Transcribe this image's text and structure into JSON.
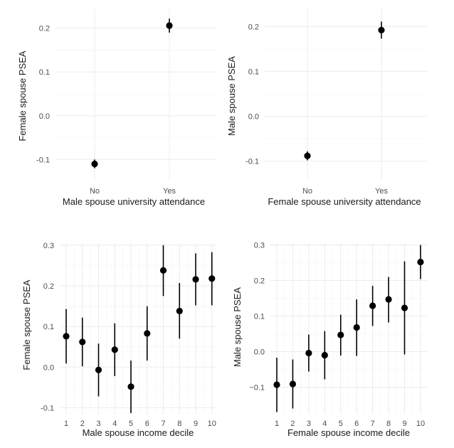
{
  "chart_data": [
    {
      "type": "scatter",
      "error_bars": true,
      "xlabel": "Male spouse university attendance",
      "ylabel": "Female spouse PSEA",
      "categories": [
        "No",
        "Yes"
      ],
      "ylim": [
        -0.145,
        0.245
      ],
      "yticks": [
        -0.1,
        0.0,
        0.1,
        0.2
      ],
      "yticklabels": [
        "-0.1",
        "0.0",
        "0.1",
        "0.2"
      ],
      "grid": true,
      "points": [
        {
          "x": "No",
          "y": -0.11,
          "lo": -0.12,
          "hi": -0.1
        },
        {
          "x": "Yes",
          "y": 0.206,
          "lo": 0.19,
          "hi": 0.222
        }
      ]
    },
    {
      "type": "scatter",
      "error_bars": true,
      "xlabel": "Female spouse university attendance",
      "ylabel": "Male spouse PSEA",
      "categories": [
        "No",
        "Yes"
      ],
      "ylim": [
        -0.14,
        0.24
      ],
      "yticks": [
        -0.1,
        0.0,
        0.1,
        0.2
      ],
      "yticklabels": [
        "-0.1",
        "0.0",
        "0.1",
        "0.2"
      ],
      "grid": true,
      "points": [
        {
          "x": "No",
          "y": -0.088,
          "lo": -0.098,
          "hi": -0.078
        },
        {
          "x": "Yes",
          "y": 0.192,
          "lo": 0.173,
          "hi": 0.211
        }
      ]
    },
    {
      "type": "scatter",
      "error_bars": true,
      "xlabel": "Male spouse income decile",
      "ylabel": "Female spouse PSEA",
      "categories": [
        "1",
        "2",
        "3",
        "4",
        "5",
        "6",
        "7",
        "8",
        "9",
        "10"
      ],
      "ylim": [
        -0.115,
        0.305
      ],
      "yticks": [
        -0.1,
        0.0,
        0.1,
        0.2,
        0.3
      ],
      "yticklabels": [
        "-0.1",
        "0.0",
        "0.1",
        "0.2",
        "0.3"
      ],
      "grid": true,
      "points": [
        {
          "x": "1",
          "y": 0.076,
          "lo": 0.009,
          "hi": 0.143
        },
        {
          "x": "2",
          "y": 0.062,
          "lo": 0.002,
          "hi": 0.122
        },
        {
          "x": "3",
          "y": -0.007,
          "lo": -0.072,
          "hi": 0.058
        },
        {
          "x": "4",
          "y": 0.043,
          "lo": -0.022,
          "hi": 0.108
        },
        {
          "x": "5",
          "y": -0.048,
          "lo": -0.113,
          "hi": 0.016
        },
        {
          "x": "6",
          "y": 0.083,
          "lo": 0.016,
          "hi": 0.15
        },
        {
          "x": "7",
          "y": 0.238,
          "lo": 0.175,
          "hi": 0.3
        },
        {
          "x": "8",
          "y": 0.138,
          "lo": 0.07,
          "hi": 0.207
        },
        {
          "x": "9",
          "y": 0.216,
          "lo": 0.152,
          "hi": 0.28
        },
        {
          "x": "10",
          "y": 0.218,
          "lo": 0.152,
          "hi": 0.283
        }
      ]
    },
    {
      "type": "scatter",
      "error_bars": true,
      "xlabel": "Female spouse income decile",
      "ylabel": "Male spouse PSEA",
      "categories": [
        "1",
        "2",
        "3",
        "4",
        "5",
        "6",
        "7",
        "8",
        "9",
        "10"
      ],
      "ylim": [
        -0.175,
        0.305
      ],
      "yticks": [
        -0.1,
        0.0,
        0.1,
        0.2,
        0.3
      ],
      "yticklabels": [
        "−0.1",
        "0.0",
        "0.1",
        "0.2",
        "0.3"
      ],
      "grid": true,
      "points": [
        {
          "x": "1",
          "y": -0.093,
          "lo": -0.17,
          "hi": -0.017
        },
        {
          "x": "2",
          "y": -0.091,
          "lo": -0.16,
          "hi": -0.022
        },
        {
          "x": "3",
          "y": -0.004,
          "lo": -0.056,
          "hi": 0.048
        },
        {
          "x": "4",
          "y": -0.01,
          "lo": -0.078,
          "hi": 0.058
        },
        {
          "x": "5",
          "y": 0.047,
          "lo": -0.011,
          "hi": 0.104
        },
        {
          "x": "6",
          "y": 0.068,
          "lo": -0.012,
          "hi": 0.147
        },
        {
          "x": "7",
          "y": 0.129,
          "lo": 0.072,
          "hi": 0.185
        },
        {
          "x": "8",
          "y": 0.147,
          "lo": 0.082,
          "hi": 0.21
        },
        {
          "x": "9",
          "y": 0.123,
          "lo": -0.008,
          "hi": 0.254
        },
        {
          "x": "10",
          "y": 0.252,
          "lo": 0.204,
          "hi": 0.3
        }
      ]
    }
  ]
}
